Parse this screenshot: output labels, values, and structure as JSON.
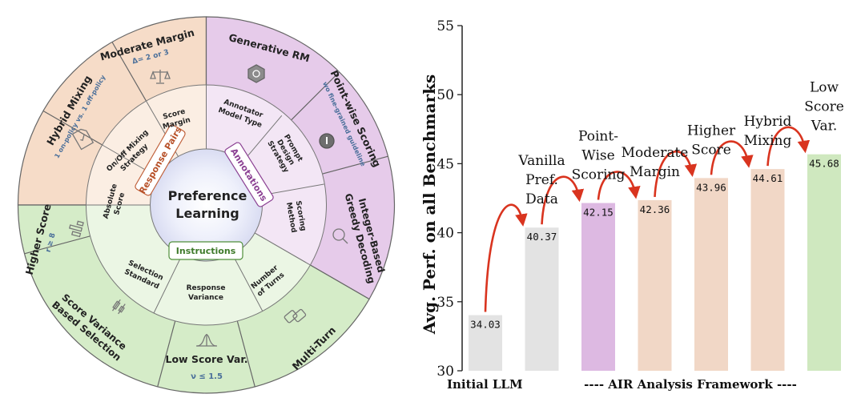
{
  "wheel": {
    "center": {
      "line1": "Preference",
      "line2": "Learning"
    },
    "categories": {
      "response_pairs": "Response Pairs",
      "annotations": "Annotations",
      "instructions": "Instructions"
    },
    "inner": {
      "score_margin": [
        "Score",
        "Margin"
      ],
      "on_off_mixing": [
        "On/Off Mixing",
        "Strategy"
      ],
      "absolute_score": [
        "Absolute",
        "Score"
      ],
      "annotator_model": [
        "Annotator",
        "Model Type"
      ],
      "prompt_design": [
        "Prompt",
        "Design",
        "Strategy"
      ],
      "scoring_method": [
        "Scoring",
        "Method"
      ],
      "selection_standard": [
        "Selection",
        "Standard"
      ],
      "response_variance": [
        "Response",
        "Variance"
      ],
      "number_of_turns": [
        "Number",
        "of Turns"
      ]
    },
    "outer": {
      "moderate_margin": {
        "title": "Moderate Margin",
        "sub": "Δ= 2 or 3"
      },
      "hybrid_mixing": {
        "title": "Hybrid Mixing",
        "sub": "1 on-policy vs. 1 off-policy"
      },
      "higher_score": {
        "title": "Higher Score",
        "sub": "r ≥ 8"
      },
      "generative_rm": {
        "title": "Generative RM"
      },
      "point_wise": {
        "title": "Point-wise Scoring",
        "sub": "wo fine-grained guideline"
      },
      "integer_based": {
        "title": [
          "Integer-Based",
          "Greedy Decoding"
        ]
      },
      "score_variance": {
        "title": [
          "Score Variance",
          "Based Selection"
        ]
      },
      "low_score_var": {
        "title": "Low Score Var.",
        "sub": "ν ≤ 1.5"
      },
      "multi_turn": {
        "title": "Multi-Turn"
      }
    },
    "colors": {
      "orange": "#f6dcc8",
      "orange_inner": "#fbeee3",
      "purple": "#e6cbea",
      "purple_inner": "#f3e6f5",
      "green": "#d5ecc8",
      "green_inner": "#ebf6e4"
    }
  },
  "chart_data": {
    "type": "bar",
    "categories": [
      "Initial LLM",
      "Vanilla Pref. Data",
      "Point-Wise Scoring",
      "Moderate Margin",
      "Higher Score",
      "Hybrid Mixing",
      "Low Score Var."
    ],
    "category_labels": [
      [],
      [
        "Vanilla",
        "Pref.",
        "Data"
      ],
      [
        "Point-",
        "Wise",
        "Scoring"
      ],
      [
        "Moderate",
        "Margin"
      ],
      [
        "Higher",
        "Score"
      ],
      [
        "Hybrid",
        "Mixing"
      ],
      [
        "Low",
        "Score",
        "Var."
      ]
    ],
    "values": [
      34.03,
      40.37,
      42.15,
      42.36,
      43.96,
      44.61,
      45.68
    ],
    "value_labels": [
      "34.03",
      "40.37",
      "42.15",
      "42.36",
      "43.96",
      "44.61",
      "45.68"
    ],
    "bar_colors": [
      "#e3e3e3",
      "#e3e3e3",
      "#ddb9e2",
      "#f1d7c6",
      "#f1d7c6",
      "#f1d7c6",
      "#cfe8bf"
    ],
    "ylabel": "Avg. Perf. on all Benchmarks",
    "ylim": [
      30,
      55
    ],
    "yticks": [
      30,
      35,
      40,
      45,
      50,
      55
    ],
    "x_left_label": "Initial LLM",
    "x_right_label": "---- AIR Analysis Framework ----",
    "arrow_color": "#d9341f"
  }
}
